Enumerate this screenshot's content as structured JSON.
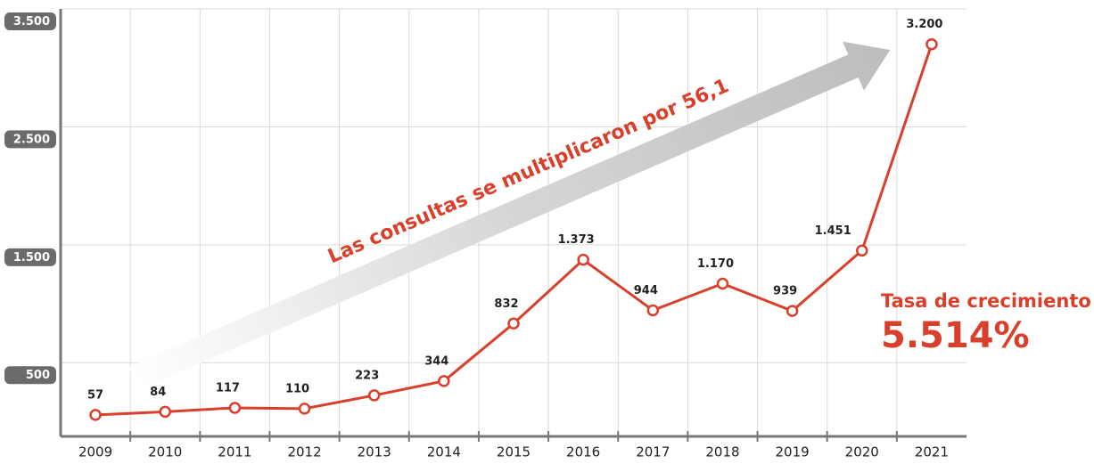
{
  "chart_data": {
    "type": "line",
    "categories": [
      "2009",
      "2010",
      "2011",
      "2012",
      "2013",
      "2014",
      "2015",
      "2016",
      "2017",
      "2018",
      "2019",
      "2020",
      "2021"
    ],
    "values": [
      57,
      84,
      117,
      110,
      223,
      344,
      832,
      1373,
      944,
      1170,
      939,
      1451,
      3200
    ],
    "value_labels": [
      "57",
      "84",
      "117",
      "110",
      "223",
      "344",
      "832",
      "1.373",
      "944",
      "1.170",
      "939",
      "1.451",
      "3.200"
    ],
    "color": "#d9402b",
    "ylim": [
      -125,
      3500
    ],
    "yticks": [
      500,
      {
        "value": 1500,
        "label": "1.500"
      },
      {
        "value": 2500,
        "label": "2.500"
      },
      {
        "value": 3500,
        "label": "3.500"
      }
    ],
    "grid": true,
    "annotation": "Las consultas se multiplicaron por 56,1",
    "growth_label": "Tasa de crecimiento",
    "growth_value": "5.514%"
  }
}
